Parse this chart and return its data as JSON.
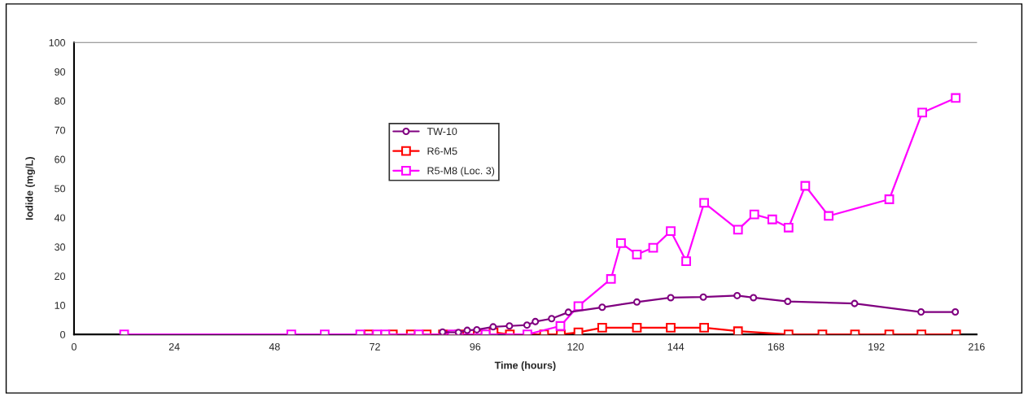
{
  "chart_data": {
    "type": "line",
    "xlabel": "Time (hours)",
    "ylabel": "Iodide (mg/L)",
    "xlim": [
      0,
      216
    ],
    "xticks": [
      0,
      24,
      48,
      72,
      96,
      120,
      144,
      168,
      192,
      216
    ],
    "ylim": [
      0,
      100
    ],
    "yticks": [
      0,
      10,
      20,
      30,
      40,
      50,
      60,
      70,
      80,
      90,
      100
    ],
    "grid": false,
    "legend": "top",
    "line_style": "solid",
    "series": [
      {
        "name": "TW-10",
        "color": "#800080",
        "marker": "circle",
        "x": [
          88.2,
          92,
          94.1,
          96.4,
          100.3,
          104.2,
          108.4,
          110.4,
          114.3,
          118.3,
          126.4,
          134.7,
          142.8,
          150.6,
          158.7,
          162.6,
          170.8,
          186.8,
          202.7,
          210.9
        ],
        "values": [
          0.8,
          0.7,
          1.4,
          1.6,
          2.6,
          2.9,
          3.2,
          4.4,
          5.4,
          7.6,
          9.3,
          11.1,
          12.6,
          12.8,
          13.3,
          12.6,
          11.3,
          10.6,
          7.7,
          7.7
        ]
      },
      {
        "name": "R6-M5",
        "color": "#ff0000",
        "marker": "square",
        "x": [
          70.5,
          76.3,
          80.6,
          84.4,
          88.3,
          92.2,
          96.6,
          100.4,
          104.3,
          112.5,
          116.5,
          120.7,
          126.4,
          134.7,
          142.8,
          150.8,
          158.9,
          171,
          179.1,
          186.9,
          195.1,
          202.8,
          211.1
        ],
        "values": [
          0,
          0,
          0,
          0,
          0,
          0,
          0,
          0.7,
          0,
          0,
          0,
          0.7,
          2.3,
          2.3,
          2.3,
          2.3,
          1.1,
          0,
          0,
          0,
          0,
          0,
          0
        ]
      },
      {
        "name": "R5-M8 (Loc. 3)",
        "color": "#ff00ff",
        "marker": "square",
        "x": [
          12,
          52,
          60,
          68.5,
          72.5,
          74.5,
          82.5,
          90.5,
          98.5,
          108.5,
          116.4,
          120.7,
          128.5,
          130.9,
          134.7,
          138.6,
          142.8,
          146.5,
          150.8,
          158.9,
          162.8,
          167.1,
          171,
          175,
          180.6,
          195.1,
          203,
          211
        ],
        "values": [
          0,
          0,
          0,
          0,
          0,
          0,
          0,
          0,
          0,
          0,
          2.9,
          9.7,
          19,
          31.3,
          27.4,
          29.7,
          35.4,
          25.1,
          45.1,
          35.9,
          41.1,
          39.4,
          36.6,
          50.9,
          40.6,
          46.3,
          76,
          81
        ]
      }
    ]
  }
}
